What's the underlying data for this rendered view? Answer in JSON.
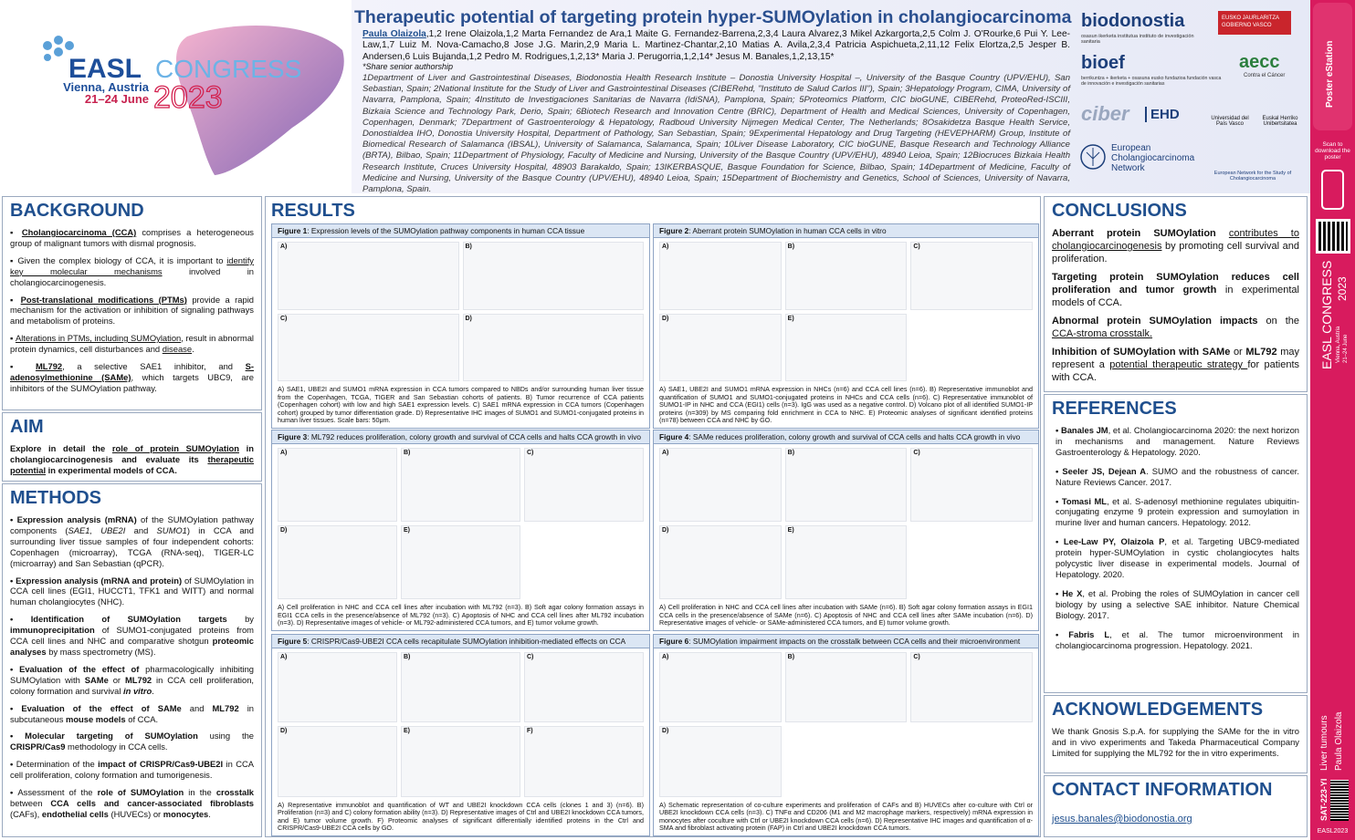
{
  "header": {
    "easl": "EASL",
    "congress": "CONGRESS",
    "city": "Vienna, Austria",
    "dates": "21–24 June",
    "year": "2023",
    "title": "Therapeutic potential of targeting protein hyper-SUMOylation in cholangiocarcinoma",
    "presenter": "Paula Olaizola",
    "authors": ",1,2 Irene Olaizola,1,2 Marta Fernandez de Ara,1 Maite G. Fernandez-Barrena,2,3,4 Laura Alvarez,3 Mikel Azkargorta,2,5 Colm J. O'Rourke,6 Pui Y. Lee-Law,1,7 Luiz M. Nova-Camacho,8 Jose J.G. Marin,2,9 Maria L. Martinez-Chantar,2,10 Matias A. Avila,2,3,4 Patricia Aspichueta,2,11,12 Felix Elortza,2,5 Jesper B. Andersen,6 Luis Bujanda,1,2 Pedro M. Rodrigues,1,2,13* Maria J. Perugorria,1,2,14* Jesus M. Banales,1,2,13,15*",
    "note": "*Share senior authorship",
    "affiliations": "1Department of Liver and Gastrointestinal Diseases, Biodonostia Health Research Institute – Donostia University Hospital –, University of the Basque Country (UPV/EHU), San Sebastian, Spain; 2National Institute for the Study of Liver and Gastrointestinal Diseases (CIBERehd, \"Instituto de Salud Carlos III\"), Spain; 3Hepatology Program, CIMA, University of Navarra, Pamplona, Spain; 4Instituto de Investigaciones Sanitarias de Navarra (IdiSNA), Pamplona, Spain; 5Proteomics Platform, CIC bioGUNE, CIBERehd, ProteoRed-ISCIII, Bizkaia Science and Technology Park, Derio, Spain; 6Biotech Research and Innovation Centre (BRIC), Department of Health and Medical Sciences, University of Copenhagen, Copenhagen, Denmark; 7Department of Gastroenterology & Hepatology, Radboud University Nijmegen Medical Center, The Netherlands; 8Osakidetza Basque Health Service, Donostialdea IHO, Donostia University Hospital, Department of Pathology, San Sebastian, Spain; 9Experimental Hepatology and Drug Targeting (HEVEPHARM) Group, Institute of Biomedical Research of Salamanca (IBSAL), University of Salamanca, Salamanca, Spain; 10Liver Disease Laboratory, CIC bioGUNE, Basque Research and Technology Alliance (BRTA), Bilbao, Spain; 11Department of Physiology, Faculty of Medicine and Nursing, University of the Basque Country (UPV/EHU), 48940 Leioa, Spain; 12Biocruces Bizkaia Health Research Institute, Cruces University Hospital, 48903 Barakaldo, Spain; 13IKERBASQUE, Basque Foundation for Science, Bilbao, Spain; 14Department of Medicine, Faculty of Medicine and Nursing, University of the Basque Country (UPV/EHU), 48940 Leioa, Spain; 15Department of Biochemistry and Genetics, School of Sciences, University of Navarra, Pamplona, Spain.",
    "logos": {
      "biodonostia": "biodonostia",
      "biodonostia_sub": "osasun ikerketa institutua instituto de investigación sanitaria",
      "gv1": "EUSKO JAURLARITZA",
      "gv2": "GOBIERNO VASCO",
      "bioef": "bioef",
      "bioef_sub": "berrikuntza + ikerketa + osasuna eusko fundazioa fundación vasca de innovación e investigación sanitarias",
      "aecc": "aecc",
      "aecc_sub": "Contra el Cáncer",
      "ciber": "ciber",
      "ehd": "EHD",
      "upv1": "Universidad del País Vasco",
      "upv2": "Euskal Herriko Unibertsitatea",
      "ecn": "European Cholangiocarcinoma Network",
      "ens": "European Network for the Study of Cholangiocarcinoma"
    }
  },
  "sidebar": {
    "estation": "Poster eStation",
    "scan": "Scan to download the poster",
    "congress": "EASL CONGRESS",
    "city": "Vienna, Austria",
    "dates": "21–24 June",
    "year": "2023",
    "topic": "Liver tumours",
    "author": "Paula Olaizola",
    "code": "SAT-223-YI",
    "tag": "EASL2023"
  },
  "background": {
    "heading": "BACKGROUND",
    "items": [
      [
        "Cholangiocarcinoma (CCA)",
        " comprises a heterogeneous group of malignant tumors with dismal prognosis."
      ],
      [
        "Given the complex biology of CCA, it is important to ",
        "identify key molecular mechanisms",
        " involved in cholangiocarcinogenesis."
      ],
      [
        "Post-translational modifications (PTMs)",
        " provide a rapid mechanism for the activation or inhibition of signaling pathways and metabolism of proteins."
      ],
      [
        "Alterations in PTMs, including SUMOylation",
        ", result in abnormal protein dynamics, cell disturbances and ",
        "disease",
        "."
      ],
      [
        "ML792",
        ", a selective SAE1 inhibitor, and ",
        "S-adenosylmethionine (SAMe)",
        ", which targets UBC9, are inhibitors of the SUMOylation pathway."
      ]
    ]
  },
  "aim": {
    "heading": "AIM",
    "text": [
      "Explore in detail the ",
      "role of protein SUMOylation",
      " in cholangiocarcinogenesis and evaluate its ",
      "therapeutic potential",
      " in experimental models of CCA."
    ]
  },
  "methods": {
    "heading": "METHODS",
    "items": [
      [
        "Expression analysis (mRNA)",
        " of the SUMOylation pathway components (",
        "SAE1, UBE2I",
        " and ",
        "SUMO1",
        ") in CCA and surrounding liver tissue samples of four independent cohorts: Copenhagen (microarray), TCGA (RNA-seq), TIGER-LC (microarray) and San Sebastian (qPCR)."
      ],
      [
        "Expression analysis (mRNA and protein)",
        " of SUMOylation in CCA cell lines (EGI1, HUCCT1, TFK1 and WITT) and normal human cholangiocytes (NHC)."
      ],
      [
        "Identification of SUMOylation targets",
        " by ",
        "immunoprecipitation",
        " of SUMO1-conjugated proteins from CCA cell lines and NHC and comparative shotgun ",
        "proteomic analyses",
        " by mass spectrometry (MS)."
      ],
      [
        "Evaluation of the effect of",
        " pharmacologically inhibiting SUMOylation with ",
        "SAMe",
        " or ",
        "ML792",
        " in CCA cell proliferation, colony formation and survival ",
        "in vitro",
        "."
      ],
      [
        "Evaluation of the effect of SAMe",
        " and ",
        "ML792",
        " in subcutaneous ",
        "mouse models",
        " of CCA."
      ],
      [
        "Molecular targeting of SUMOylation",
        " using the ",
        "CRISPR/Cas9",
        " methodology in CCA cells."
      ],
      [
        "Determination of the ",
        "impact of CRISPR/Cas9-UBE2I",
        " in CCA cell proliferation, colony formation and tumorigenesis."
      ],
      [
        "Assessment of the ",
        "role of SUMOylation",
        " in the ",
        "crosstalk",
        " between ",
        "CCA cells and cancer-associated fibroblasts",
        " (CAFs), ",
        "endothelial cells",
        " (HUVECs) or ",
        "monocytes",
        "."
      ]
    ]
  },
  "results": {
    "heading": "RESULTS",
    "figures": [
      {
        "label": "Figure 1",
        "title": ": Expression levels of the SUMOylation pathway components in human CCA tissue",
        "panels": [
          "A)",
          "B)",
          "C)",
          "D)"
        ],
        "caption": "A) SAE1, UBE2I and SUMO1 mRNA expression in CCA tumors compared to NBDs and/or surrounding human liver tissue from the Copenhagen, TCGA, TIGER and San Sebastian cohorts of patients. B) Tumor recurrence of CCA patients (Copenhagen cohort) with low and high SAE1 expression levels. C) SAE1 mRNA expression in CCA tumors (Copenhagen cohort) grouped by tumor differentiation grade. D) Representative IHC images of SUMO1 and SUMO1-conjugated proteins in human liver tissues. Scale bars: 50μm."
      },
      {
        "label": "Figure 2",
        "title": ": Aberrant protein SUMOylation in human CCA cells in vitro",
        "panels": [
          "A)",
          "B)",
          "C)",
          "D)",
          "E)"
        ],
        "caption": "A) SAE1, UBE2I and SUMO1 mRNA expression in NHCs (n=6) and CCA cell lines (n=6). B) Representative immunoblot and quantification of SUMO1 and SUMO1-conjugated proteins in NHCs and CCA cells (n=6). C) Representative immunoblot of SUMO1-IP in NHC and CCA (EGI1) cells (n=3). IgG was used as a negative control. D) Volcano plot of all identified SUMO1-IP proteins (n=309) by MS comparing fold enrichment in CCA to NHC. E) Proteomic analyses of significant identified proteins (n=78) between CCA and NHC by GO."
      },
      {
        "label": "Figure 3",
        "title": ": ML792 reduces proliferation, colony growth and survival of CCA cells and halts CCA growth in vivo",
        "panels": [
          "A)",
          "B)",
          "C)",
          "D)",
          "E)"
        ],
        "caption": "A) Cell proliferation in NHC and CCA cell lines after incubation with ML792 (n=3). B) Soft agar colony formation assays in EGI1 CCA cells in the presence/absence of ML792 (n=3). C) Apoptosis of NHC and CCA cell lines after ML792 incubation (n=3). D) Representative images of vehicle- or ML792-administered CCA tumors, and E) tumor volume growth."
      },
      {
        "label": "Figure 4",
        "title": ": SAMe reduces proliferation, colony growth and survival of CCA cells and halts CCA growth in vivo",
        "panels": [
          "A)",
          "B)",
          "C)",
          "D)",
          "E)"
        ],
        "caption": "A) Cell proliferation in NHC and CCA cell lines after incubation with SAMe (n=6). B) Soft agar colony formation assays in EGI1 CCA cells in the presence/absence of SAMe (n=6). C) Apoptosis of NHC and CCA cell lines after SAMe incubation (n=6). D) Representative images of vehicle- or SAMe-administered CCA tumors, and E) tumor volume growth."
      },
      {
        "label": "Figure 5",
        "title": ": CRISPR/Cas9-UBE2I CCA cells recapitulate SUMOylation inhibition-mediated effects on CCA",
        "panels": [
          "A)",
          "B)",
          "C)",
          "D)",
          "E)",
          "F)"
        ],
        "caption": "A) Representative immunoblot and quantification of WT and UBE2I knockdown CCA cells (clones 1 and 3) (n=6). B) Proliferation (n=3) and C) colony formation ability (n=3). D) Representative images of Ctrl and UBE2I knockdown CCA tumors, and E) tumor volume growth. F) Proteomic analyses of significant differentially identified proteins in the Ctrl and CRISPR/Cas9-UBE2I CCA cells by GO."
      },
      {
        "label": "Figure 6",
        "title": ": SUMOylation impairment impacts on the crosstalk between CCA cells and their microenvironment",
        "panels": [
          "A)",
          "B)",
          "C)",
          "D)"
        ],
        "caption": "A) Schematic representation of co-culture experiments and proliferation of CAFs and B) HUVECs after co-culture with Ctrl or UBE2I knockdown CCA cells (n=3). C) TNFα and CD206 (M1 and M2 macrophage markers, respectively) mRNA expression in monocytes after coculture with Ctrl or UBE2I knockdown CCA cells (n=6). D) Representative IHC images and quantification of α-SMA and fibroblast activating protein (FAP) in Ctrl and UBE2I knockdown CCA tumors."
      }
    ]
  },
  "conclusions": {
    "heading": "CONCLUSIONS",
    "items": [
      [
        "Aberrant protein SUMOylation",
        " ",
        "contributes to cholangiocarcinogenesis",
        " by promoting cell survival and proliferation."
      ],
      [
        "Targeting protein SUMOylation reduces cell proliferation and tumor growth",
        " in experimental models of CCA."
      ],
      [
        "Abnormal protein SUMOylation impacts",
        " on the ",
        "CCA-stroma crosstalk."
      ],
      [
        "Inhibition of SUMOylation with SAMe",
        " or ",
        "ML792",
        " may represent a ",
        "potential therapeutic strategy ",
        "for patients with CCA."
      ]
    ]
  },
  "references": {
    "heading": "REFERENCES",
    "items": [
      [
        "Banales JM",
        ", et al. Cholangiocarcinoma 2020: the next horizon in mechanisms and management. Nature Reviews Gastroenterology & Hepatology. 2020."
      ],
      [
        "Seeler JS, Dejean A",
        ". SUMO and the robustness of cancer. Nature Reviews Cancer. 2017."
      ],
      [
        "Tomasi ML",
        ", et al. S-adenosyl methionine regulates ubiquitin-conjugating enzyme 9 protein expression and sumoylation in murine liver and human cancers. Hepatology. 2012."
      ],
      [
        "Lee-Law PY, Olaizola P",
        ", et al. Targeting UBC9-mediated protein hyper-SUMOylation in cystic cholangiocytes halts polycystic liver disease in experimental models. Journal of Hepatology. 2020."
      ],
      [
        "He X",
        ", et al. Probing the roles of SUMOylation in cancer cell biology by using a selective SAE inhibitor. Nature Chemical Biology. 2017."
      ],
      [
        "Fabris L",
        ", et al. The tumor microenvironment in cholangiocarcinoma progression. Hepatology. 2021."
      ]
    ]
  },
  "acknowledgements": {
    "heading": "ACKNOWLEDGEMENTS",
    "text": "We thank Gnosis S.p.A. for supplying the SAMe for the in vitro and in vivo experiments and Takeda Pharmaceutical Company Limited for supplying the ML792 for the in vitro experiments."
  },
  "contact": {
    "heading": "CONTACT INFORMATION",
    "email": "jesus.banales@biodonostia.org"
  }
}
